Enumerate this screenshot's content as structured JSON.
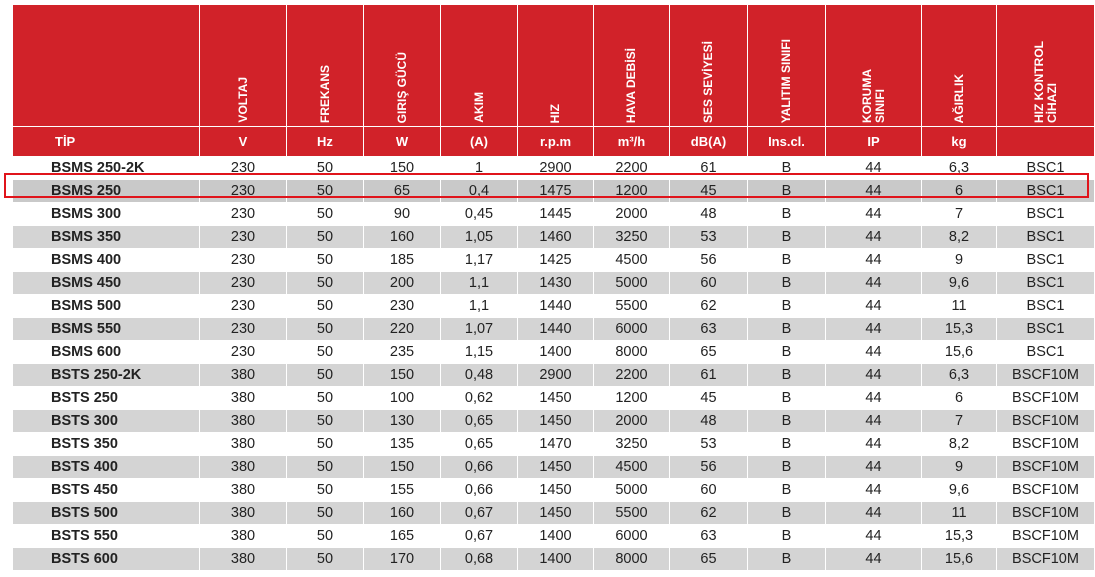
{
  "headers": [
    {
      "key": "tip",
      "label": "TİP",
      "unit": ""
    },
    {
      "key": "voltaj",
      "label": "VOLTAJ",
      "unit": "V"
    },
    {
      "key": "frekans",
      "label": "FREKANS",
      "unit": "Hz"
    },
    {
      "key": "giris_gucu",
      "label": "GIRIŞ GÜCÜ",
      "unit": "W"
    },
    {
      "key": "akim",
      "label": "AKIM",
      "unit": "(A)"
    },
    {
      "key": "hiz",
      "label": "HIZ",
      "unit": "r.p.m"
    },
    {
      "key": "hava_debisi",
      "label": "HAVA DEBİSİ",
      "unit": "m³/h"
    },
    {
      "key": "ses_seviyesi",
      "label": "SES SEVİYESİ",
      "unit": "dB(A)"
    },
    {
      "key": "yalitim",
      "label": "YALITIM SINIFI",
      "unit": "Ins.cl."
    },
    {
      "key": "koruma",
      "label": "KORUMA\nSINIFI",
      "unit": "IP"
    },
    {
      "key": "agirlik",
      "label": "AĞIRLIK",
      "unit": "kg"
    },
    {
      "key": "hiz_kontrol",
      "label": "HIZ KONTROL\nCİHAZI",
      "unit": ""
    }
  ],
  "highlighted_row": 1,
  "highlight_color": "#e0141b",
  "header_color": "#d12229",
  "rows": [
    [
      "BSMS 250-2K",
      "230",
      "50",
      "150",
      "1",
      "2900",
      "2200",
      "61",
      "B",
      "44",
      "6,3",
      "BSC1"
    ],
    [
      "BSMS 250",
      "230",
      "50",
      "65",
      "0,4",
      "1475",
      "1200",
      "45",
      "B",
      "44",
      "6",
      "BSC1"
    ],
    [
      "BSMS 300",
      "230",
      "50",
      "90",
      "0,45",
      "1445",
      "2000",
      "48",
      "B",
      "44",
      "7",
      "BSC1"
    ],
    [
      "BSMS 350",
      "230",
      "50",
      "160",
      "1,05",
      "1460",
      "3250",
      "53",
      "B",
      "44",
      "8,2",
      "BSC1"
    ],
    [
      "BSMS 400",
      "230",
      "50",
      "185",
      "1,17",
      "1425",
      "4500",
      "56",
      "B",
      "44",
      "9",
      "BSC1"
    ],
    [
      "BSMS 450",
      "230",
      "50",
      "200",
      "1,1",
      "1430",
      "5000",
      "60",
      "B",
      "44",
      "9,6",
      "BSC1"
    ],
    [
      "BSMS 500",
      "230",
      "50",
      "230",
      "1,1",
      "1440",
      "5500",
      "62",
      "B",
      "44",
      "11",
      "BSC1"
    ],
    [
      "BSMS 550",
      "230",
      "50",
      "220",
      "1,07",
      "1440",
      "6000",
      "63",
      "B",
      "44",
      "15,3",
      "BSC1"
    ],
    [
      "BSMS 600",
      "230",
      "50",
      "235",
      "1,15",
      "1400",
      "8000",
      "65",
      "B",
      "44",
      "15,6",
      "BSC1"
    ],
    [
      "BSTS 250-2K",
      "380",
      "50",
      "150",
      "0,48",
      "2900",
      "2200",
      "61",
      "B",
      "44",
      "6,3",
      "BSCF10M"
    ],
    [
      "BSTS 250",
      "380",
      "50",
      "100",
      "0,62",
      "1450",
      "1200",
      "45",
      "B",
      "44",
      "6",
      "BSCF10M"
    ],
    [
      "BSTS 300",
      "380",
      "50",
      "130",
      "0,65",
      "1450",
      "2000",
      "48",
      "B",
      "44",
      "7",
      "BSCF10M"
    ],
    [
      "BSTS 350",
      "380",
      "50",
      "135",
      "0,65",
      "1470",
      "3250",
      "53",
      "B",
      "44",
      "8,2",
      "BSCF10M"
    ],
    [
      "BSTS 400",
      "380",
      "50",
      "150",
      "0,66",
      "1450",
      "4500",
      "56",
      "B",
      "44",
      "9",
      "BSCF10M"
    ],
    [
      "BSTS 450",
      "380",
      "50",
      "155",
      "0,66",
      "1450",
      "5000",
      "60",
      "B",
      "44",
      "9,6",
      "BSCF10M"
    ],
    [
      "BSTS 500",
      "380",
      "50",
      "160",
      "0,67",
      "1450",
      "5500",
      "62",
      "B",
      "44",
      "11",
      "BSCF10M"
    ],
    [
      "BSTS 550",
      "380",
      "50",
      "165",
      "0,67",
      "1400",
      "6000",
      "63",
      "B",
      "44",
      "15,3",
      "BSCF10M"
    ],
    [
      "BSTS 600",
      "380",
      "50",
      "170",
      "0,68",
      "1400",
      "8000",
      "65",
      "B",
      "44",
      "15,6",
      "BSCF10M"
    ]
  ]
}
